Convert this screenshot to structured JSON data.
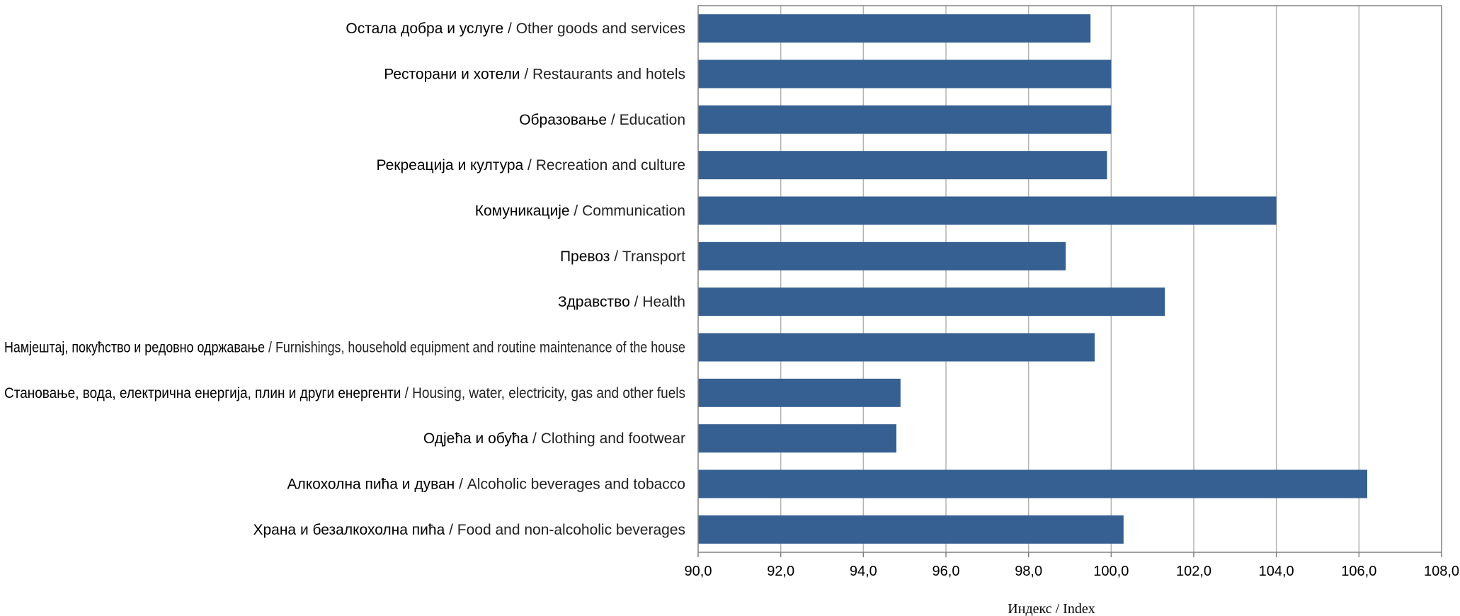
{
  "chart_data": {
    "type": "bar",
    "orientation": "horizontal",
    "categories": [
      {
        "sr": "Остала добра и услуге",
        "en": "Other goods and services"
      },
      {
        "sr": "Ресторани и хотели",
        "en": "Restaurants and hotels"
      },
      {
        "sr": "Образовање",
        "en": "Education"
      },
      {
        "sr": "Рекреација и култура",
        "en": "Recreation and culture"
      },
      {
        "sr": "Комуникације",
        "en": "Communication"
      },
      {
        "sr": "Превоз",
        "en": "Transport"
      },
      {
        "sr": "Здравство",
        "en": "Health"
      },
      {
        "sr": "Намјештај, покућство и редовно одржавање",
        "en": "Furnishings, household equipment and routine maintenance of the house"
      },
      {
        "sr": "Становање, вода, електрична енергија, плин и други енергенти",
        "en": "Housing, water, electricity, gas and other fuels"
      },
      {
        "sr": "Одјећа и обућа",
        "en": "Clothing and footwear"
      },
      {
        "sr": "Алкохолна пића и дуван",
        "en": "Alcoholic beverages and tobacco"
      },
      {
        "sr": "Храна и безалкохолна пића",
        "en": "Food and non-alcoholic beverages"
      }
    ],
    "values": [
      99.5,
      100.0,
      100.0,
      99.9,
      104.0,
      98.9,
      101.3,
      99.6,
      94.9,
      94.8,
      106.2,
      100.3
    ],
    "xlim": [
      90,
      108
    ],
    "xticks": [
      "90,0",
      "92,0",
      "94,0",
      "96,0",
      "98,0",
      "100,0",
      "102,0",
      "104,0",
      "106,0",
      "108,0"
    ],
    "xlabel": {
      "sr": "Индекс",
      "en": "Index"
    },
    "grid": "vertical",
    "bar_color": "#366092",
    "grid_color": "#b3b3b3",
    "axis_color": "#808080"
  }
}
